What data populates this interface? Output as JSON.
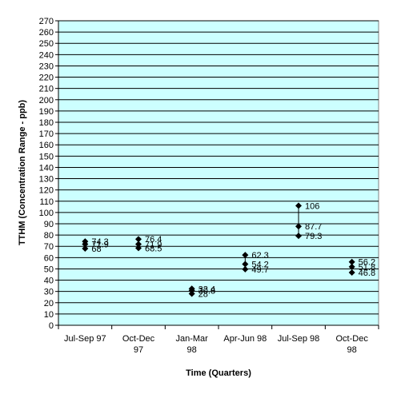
{
  "chart_data": {
    "type": "scatter",
    "xlabel": "Time (Quarters)",
    "ylabel": "TTHM (Concentration Range - ppb)",
    "ylim": [
      0,
      270
    ],
    "ytick_step": 10,
    "grid": true,
    "plot_background": "#ccffff",
    "marker_color": "#000000",
    "categories": [
      [
        "Jul-Sep 97"
      ],
      [
        "Oct-Dec",
        "97"
      ],
      [
        "Jan-Mar",
        "98"
      ],
      [
        "Apr-Jun 98"
      ],
      [
        "Jul-Sep 98"
      ],
      [
        "Oct-Dec",
        "98"
      ]
    ],
    "points": [
      {
        "category": 0,
        "values": [
          74.3,
          71.9,
          68
        ]
      },
      {
        "category": 1,
        "values": [
          76.4,
          71.9,
          68.5
        ]
      },
      {
        "category": 2,
        "values": [
          32.4,
          30.8,
          28
        ]
      },
      {
        "category": 3,
        "values": [
          62.3,
          54.2,
          49.7
        ]
      },
      {
        "category": 4,
        "values": [
          106,
          87.7,
          79.3
        ]
      },
      {
        "category": 5,
        "values": [
          56.2,
          51.8,
          46.8
        ]
      }
    ]
  }
}
